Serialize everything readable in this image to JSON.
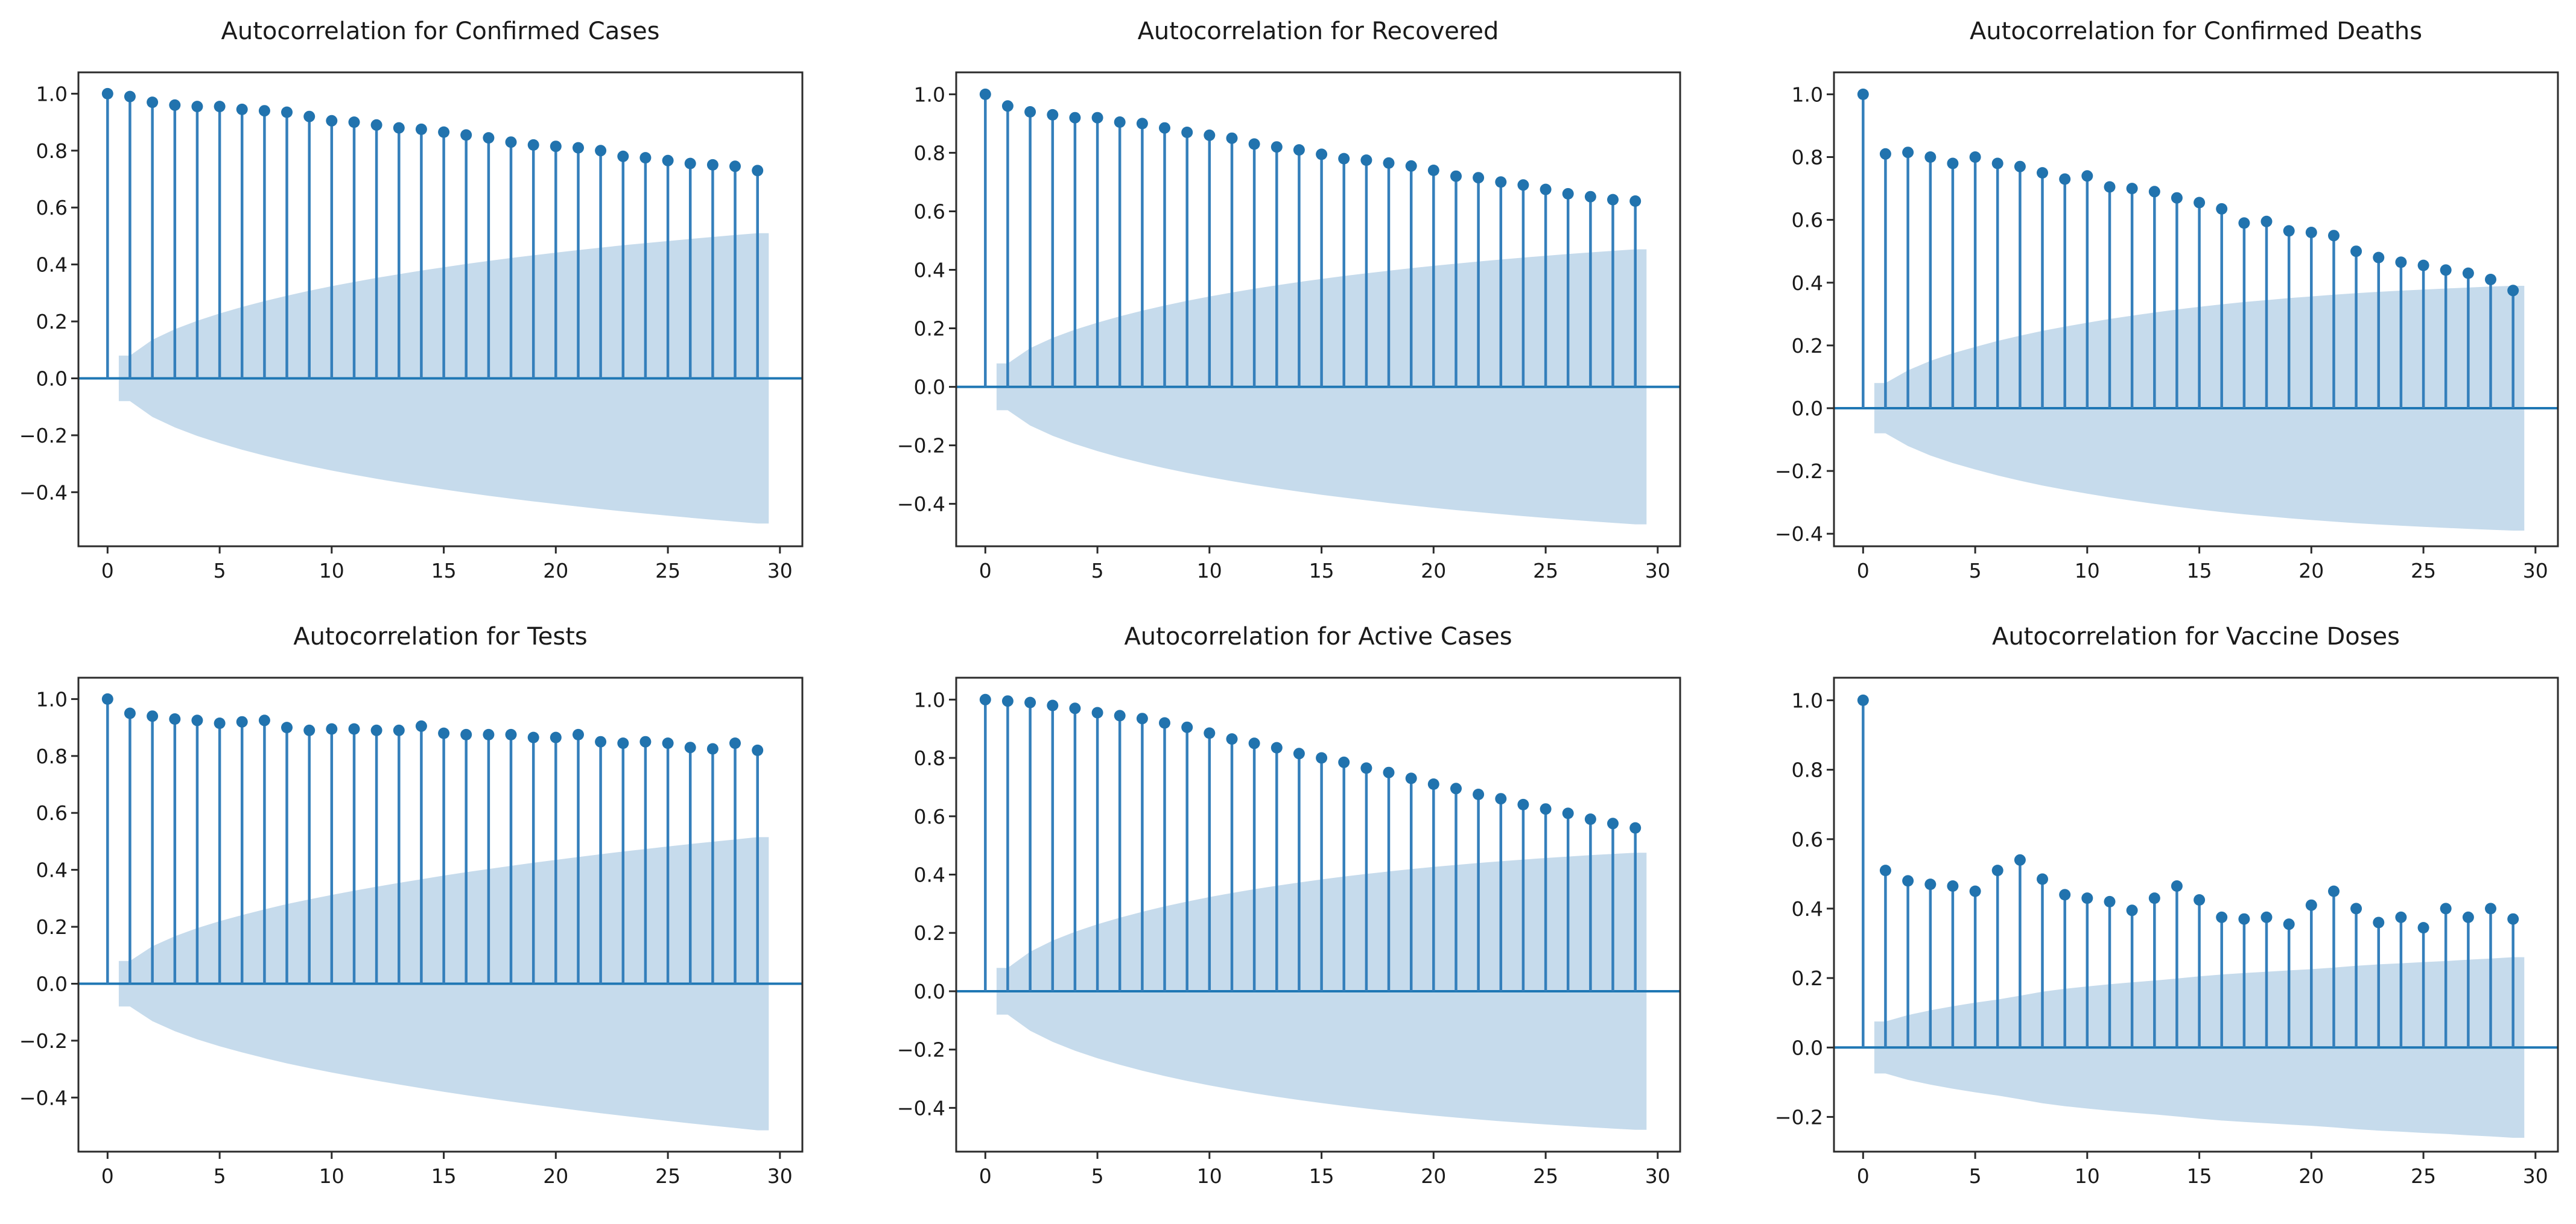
{
  "palette": {
    "accent": "#1f77b4",
    "stem_line": "#347fbb",
    "marker": "#2173ae",
    "band_fill": "#c6dbec",
    "spine": "#2b2b2b",
    "text": "#1a1a1a",
    "background": "#ffffff"
  },
  "shared": {
    "lags": [
      0,
      1,
      2,
      3,
      4,
      5,
      6,
      7,
      8,
      9,
      10,
      11,
      12,
      13,
      14,
      15,
      16,
      17,
      18,
      19,
      20,
      21,
      22,
      23,
      24,
      25,
      26,
      27,
      28,
      29
    ],
    "xticks": [
      0,
      5,
      10,
      15,
      20,
      25,
      30
    ],
    "xlim": [
      -1.3,
      31.0
    ],
    "grid": false,
    "legend": "none"
  },
  "chart_data": [
    {
      "type": "scatter",
      "style": "stem-acf",
      "title": "Autocorrelation for Confirmed Cases",
      "xlabel": "",
      "ylabel": "",
      "values": [
        1.0,
        0.99,
        0.97,
        0.96,
        0.955,
        0.955,
        0.945,
        0.94,
        0.935,
        0.92,
        0.905,
        0.9,
        0.89,
        0.88,
        0.875,
        0.865,
        0.855,
        0.845,
        0.83,
        0.82,
        0.815,
        0.81,
        0.8,
        0.78,
        0.775,
        0.765,
        0.755,
        0.75,
        0.745,
        0.73
      ],
      "conf_halfwidth_lag1": 0.08,
      "conf_halfwidth_lag29": 0.51,
      "yticks": [
        1.0,
        0.8,
        0.6,
        0.4,
        0.2,
        0.0,
        -0.2,
        -0.4
      ],
      "ylim": [
        -0.59,
        1.075
      ]
    },
    {
      "type": "scatter",
      "style": "stem-acf",
      "title": "Autocorrelation for Recovered",
      "xlabel": "",
      "ylabel": "",
      "values": [
        1.0,
        0.96,
        0.94,
        0.93,
        0.92,
        0.92,
        0.905,
        0.9,
        0.885,
        0.87,
        0.86,
        0.85,
        0.83,
        0.82,
        0.81,
        0.795,
        0.78,
        0.775,
        0.765,
        0.755,
        0.74,
        0.72,
        0.715,
        0.7,
        0.69,
        0.675,
        0.66,
        0.65,
        0.64,
        0.635
      ],
      "conf_halfwidth_lag1": 0.08,
      "conf_halfwidth_lag29": 0.47,
      "yticks": [
        1.0,
        0.8,
        0.6,
        0.4,
        0.2,
        0.0,
        -0.2,
        -0.4
      ],
      "ylim": [
        -0.545,
        1.075
      ]
    },
    {
      "type": "scatter",
      "style": "stem-acf",
      "title": "Autocorrelation for Confirmed Deaths",
      "xlabel": "",
      "ylabel": "",
      "values": [
        1.0,
        0.81,
        0.815,
        0.8,
        0.78,
        0.8,
        0.78,
        0.77,
        0.75,
        0.73,
        0.74,
        0.705,
        0.7,
        0.69,
        0.67,
        0.655,
        0.635,
        0.59,
        0.595,
        0.565,
        0.56,
        0.55,
        0.5,
        0.48,
        0.465,
        0.455,
        0.44,
        0.43,
        0.41,
        0.375
      ],
      "conf_halfwidth_lag1": 0.08,
      "conf_halfwidth_lag29": 0.39,
      "yticks": [
        1.0,
        0.8,
        0.6,
        0.4,
        0.2,
        0.0,
        -0.2,
        -0.4
      ],
      "ylim": [
        -0.44,
        1.07
      ]
    },
    {
      "type": "scatter",
      "style": "stem-acf",
      "title": "Autocorrelation for Tests",
      "xlabel": "",
      "ylabel": "",
      "values": [
        1.0,
        0.95,
        0.94,
        0.93,
        0.925,
        0.915,
        0.92,
        0.925,
        0.9,
        0.89,
        0.895,
        0.895,
        0.89,
        0.89,
        0.905,
        0.88,
        0.875,
        0.875,
        0.875,
        0.865,
        0.865,
        0.875,
        0.85,
        0.845,
        0.85,
        0.845,
        0.83,
        0.825,
        0.845,
        0.82
      ],
      "conf_halfwidth_lag1": 0.08,
      "conf_halfwidth_lag29": 0.515,
      "yticks": [
        1.0,
        0.8,
        0.6,
        0.4,
        0.2,
        0.0,
        -0.2,
        -0.4
      ],
      "ylim": [
        -0.59,
        1.075
      ]
    },
    {
      "type": "scatter",
      "style": "stem-acf",
      "title": "Autocorrelation for Active Cases",
      "xlabel": "",
      "ylabel": "",
      "values": [
        1.0,
        0.995,
        0.99,
        0.98,
        0.97,
        0.955,
        0.945,
        0.935,
        0.92,
        0.905,
        0.885,
        0.865,
        0.85,
        0.835,
        0.815,
        0.8,
        0.785,
        0.765,
        0.75,
        0.73,
        0.71,
        0.695,
        0.675,
        0.66,
        0.64,
        0.625,
        0.61,
        0.59,
        0.575,
        0.56
      ],
      "conf_halfwidth_lag1": 0.08,
      "conf_halfwidth_lag29": 0.475,
      "yticks": [
        1.0,
        0.8,
        0.6,
        0.4,
        0.2,
        0.0,
        -0.2,
        -0.4
      ],
      "ylim": [
        -0.55,
        1.075
      ]
    },
    {
      "type": "scatter",
      "style": "stem-acf",
      "title": "Autocorrelation for Vaccine Doses",
      "xlabel": "",
      "ylabel": "",
      "values": [
        1.0,
        0.51,
        0.48,
        0.47,
        0.465,
        0.45,
        0.51,
        0.54,
        0.485,
        0.44,
        0.43,
        0.42,
        0.395,
        0.43,
        0.465,
        0.425,
        0.375,
        0.37,
        0.375,
        0.355,
        0.41,
        0.45,
        0.4,
        0.36,
        0.375,
        0.345,
        0.4,
        0.375,
        0.4,
        0.37
      ],
      "conf_halfwidth_lag1": 0.075,
      "conf_halfwidth_lag29": 0.26,
      "yticks": [
        1.0,
        0.8,
        0.6,
        0.4,
        0.2,
        0.0,
        -0.2
      ],
      "ylim": [
        -0.3,
        1.065
      ]
    }
  ]
}
